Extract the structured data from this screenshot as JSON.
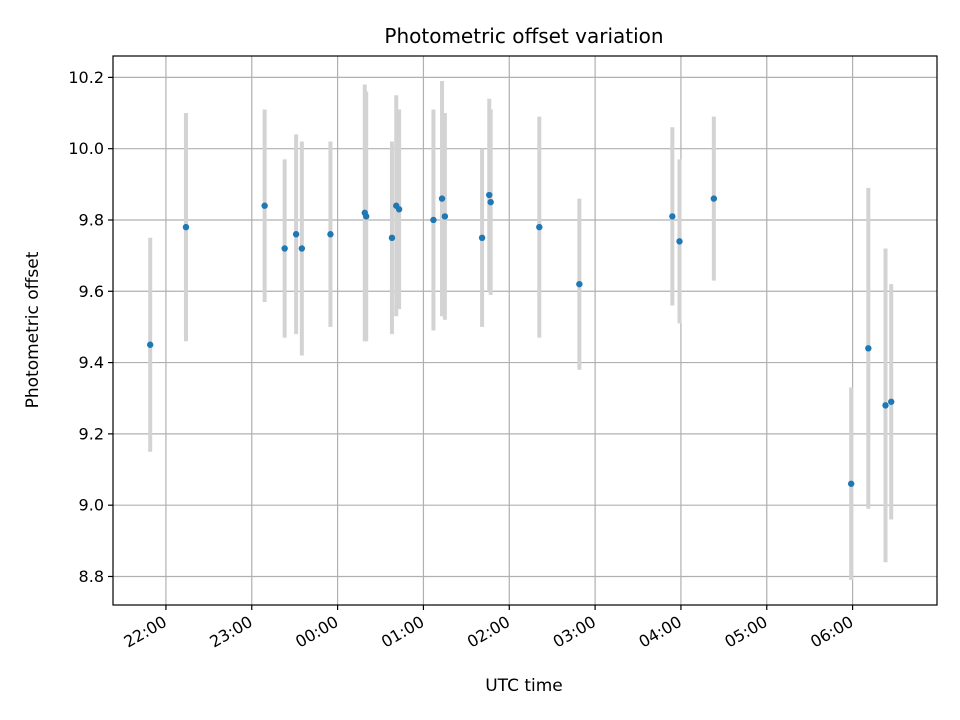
{
  "chart_data": {
    "type": "scatter",
    "title": "Photometric offset variation",
    "xlabel": "UTC time",
    "ylabel": "Photometric offset",
    "grid": true,
    "colors": {
      "marker": "#1f77b4",
      "errorbar": "#d3d3d3",
      "grid": "#b0b0b0",
      "axis": "#000000"
    },
    "xlim": [
      "21:23",
      "06:59"
    ],
    "ylim": [
      8.72,
      10.26
    ],
    "x_ticks": [
      "22:00",
      "23:00",
      "00:00",
      "01:00",
      "02:00",
      "03:00",
      "04:00",
      "05:00",
      "06:00"
    ],
    "y_ticks": [
      "8.8",
      "9.0",
      "9.2",
      "9.4",
      "9.6",
      "9.8",
      "10.0",
      "10.2"
    ],
    "series": [
      {
        "points": [
          {
            "x": "21:49",
            "y": 9.45,
            "yerr": 0.3
          },
          {
            "x": "22:14",
            "y": 9.78,
            "yerr": 0.32
          },
          {
            "x": "23:09",
            "y": 9.84,
            "yerr": 0.27
          },
          {
            "x": "23:23",
            "y": 9.72,
            "yerr": 0.25
          },
          {
            "x": "23:31",
            "y": 9.76,
            "yerr": 0.28
          },
          {
            "x": "23:35",
            "y": 9.72,
            "yerr": 0.3
          },
          {
            "x": "23:55",
            "y": 9.76,
            "yerr": 0.26
          },
          {
            "x": "00:19",
            "y": 9.82,
            "yerr": 0.36
          },
          {
            "x": "00:20",
            "y": 9.81,
            "yerr": 0.35
          },
          {
            "x": "00:38",
            "y": 9.75,
            "yerr": 0.27
          },
          {
            "x": "00:41",
            "y": 9.84,
            "yerr": 0.31
          },
          {
            "x": "00:43",
            "y": 9.83,
            "yerr": 0.28
          },
          {
            "x": "01:07",
            "y": 9.8,
            "yerr": 0.31
          },
          {
            "x": "01:13",
            "y": 9.86,
            "yerr": 0.33
          },
          {
            "x": "01:15",
            "y": 9.81,
            "yerr": 0.29
          },
          {
            "x": "01:41",
            "y": 9.75,
            "yerr": 0.25
          },
          {
            "x": "01:46",
            "y": 9.87,
            "yerr": 0.27
          },
          {
            "x": "01:47",
            "y": 9.85,
            "yerr": 0.26
          },
          {
            "x": "02:21",
            "y": 9.78,
            "yerr": 0.31
          },
          {
            "x": "02:49",
            "y": 9.62,
            "yerr": 0.24
          },
          {
            "x": "03:54",
            "y": 9.81,
            "yerr": 0.25
          },
          {
            "x": "03:59",
            "y": 9.74,
            "yerr": 0.23
          },
          {
            "x": "04:23",
            "y": 9.86,
            "yerr": 0.23
          },
          {
            "x": "05:59",
            "y": 9.06,
            "yerr": 0.27
          },
          {
            "x": "06:11",
            "y": 9.44,
            "yerr": 0.45
          },
          {
            "x": "06:23",
            "y": 9.28,
            "yerr": 0.44
          },
          {
            "x": "06:27",
            "y": 9.29,
            "yerr": 0.33
          }
        ]
      }
    ]
  }
}
